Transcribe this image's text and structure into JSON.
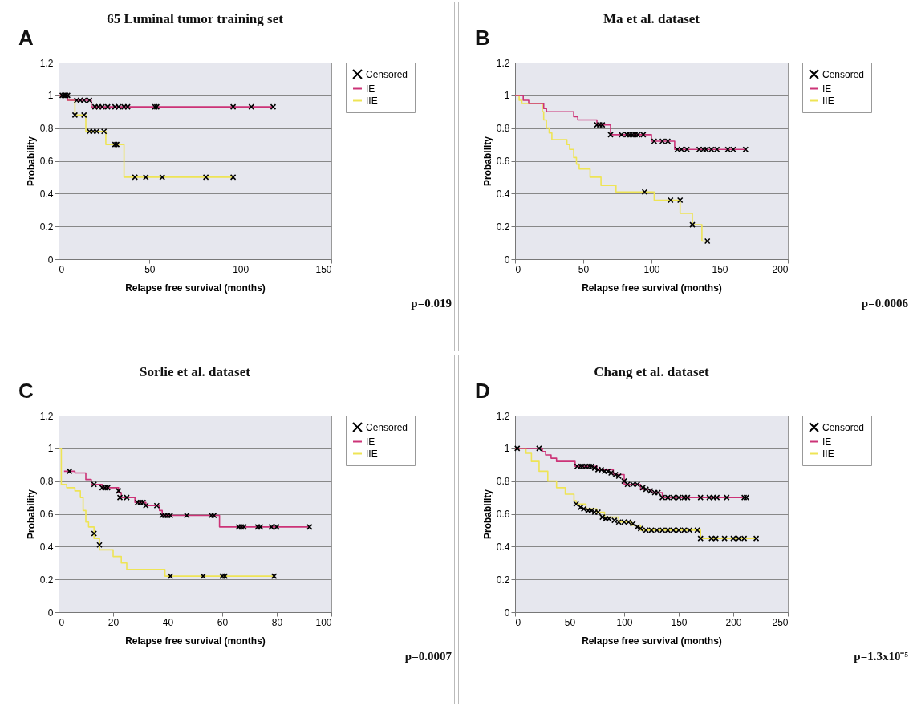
{
  "chart_data": [
    {
      "type": "step",
      "title": "65 Luminal tumor training set",
      "xlabel": "Relapse free survival (months)",
      "ylabel": "Probability",
      "annotations": [
        "A",
        "p=0.019"
      ],
      "xlim": [
        0,
        150
      ],
      "xticks": [
        0,
        50,
        100,
        150
      ],
      "ylim": [
        0,
        1.2
      ],
      "yticks": [
        0,
        0.2,
        0.4,
        0.6,
        0.8,
        1,
        1.2
      ],
      "grid": "y",
      "legend": "right",
      "series": [
        {
          "name": "Censored",
          "type": "scatter",
          "marker": "cross",
          "color": "#000000",
          "x": [
            2,
            3,
            4,
            5,
            10,
            12,
            14,
            17,
            20,
            22,
            24,
            27,
            31,
            33,
            36,
            38,
            53,
            54,
            96,
            106,
            118,
            9,
            14,
            17,
            19,
            21,
            25,
            31,
            32,
            42,
            48,
            57,
            81,
            96
          ],
          "values": [
            1,
            1,
            1,
            1,
            0.97,
            0.97,
            0.97,
            0.97,
            0.93,
            0.93,
            0.93,
            0.93,
            0.93,
            0.93,
            0.93,
            0.93,
            0.93,
            0.93,
            0.93,
            0.93,
            0.93,
            0.88,
            0.88,
            0.78,
            0.78,
            0.78,
            0.78,
            0.7,
            0.7,
            0.5,
            0.5,
            0.5,
            0.5,
            0.5
          ]
        },
        {
          "name": "IE",
          "color": "#cc3377",
          "x": [
            0,
            5,
            18,
            118
          ],
          "values": [
            1,
            0.97,
            0.93,
            0.93
          ]
        },
        {
          "name": "IIE",
          "color": "#eee455",
          "x": [
            0,
            5,
            9,
            15,
            26,
            36,
            96
          ],
          "values": [
            1,
            0.97,
            0.88,
            0.78,
            0.7,
            0.5,
            0.5
          ]
        }
      ]
    },
    {
      "type": "step",
      "title": "Ma et al. dataset",
      "xlabel": "Relapse free survival (months)",
      "ylabel": "Probability",
      "annotations": [
        "B",
        "p=0.0006"
      ],
      "xlim": [
        0,
        200
      ],
      "xticks": [
        0,
        50,
        100,
        150,
        200
      ],
      "ylim": [
        0,
        1.2
      ],
      "yticks": [
        0,
        0.2,
        0.4,
        0.6,
        0.8,
        1,
        1.2
      ],
      "grid": "y",
      "legend": "right",
      "series": [
        {
          "name": "Censored",
          "type": "scatter",
          "marker": "cross",
          "color": "#000000",
          "x": [
            60,
            62,
            64,
            70,
            78,
            82,
            84,
            86,
            88,
            90,
            94,
            102,
            108,
            112,
            119,
            122,
            126,
            135,
            138,
            140,
            144,
            148,
            156,
            160,
            169,
            95,
            114,
            121,
            130,
            141
          ],
          "values": [
            0.82,
            0.82,
            0.82,
            0.76,
            0.76,
            0.76,
            0.76,
            0.76,
            0.76,
            0.76,
            0.76,
            0.72,
            0.72,
            0.72,
            0.67,
            0.67,
            0.67,
            0.67,
            0.67,
            0.67,
            0.67,
            0.67,
            0.67,
            0.67,
            0.67,
            0.41,
            0.36,
            0.36,
            0.21,
            0.11
          ]
        },
        {
          "name": "IE",
          "color": "#cc3377",
          "x": [
            0,
            6,
            10,
            21,
            23,
            43,
            46,
            60,
            70,
            100,
            117,
            170
          ],
          "values": [
            1,
            0.97,
            0.95,
            0.92,
            0.9,
            0.87,
            0.85,
            0.82,
            0.76,
            0.72,
            0.67,
            0.67
          ]
        },
        {
          "name": "IIE",
          "color": "#eee455",
          "x": [
            0,
            3,
            5,
            20,
            21,
            23,
            25,
            27,
            38,
            40,
            43,
            45,
            47,
            55,
            63,
            74,
            102,
            121,
            130,
            137,
            141
          ],
          "values": [
            1,
            0.97,
            0.95,
            0.9,
            0.85,
            0.8,
            0.77,
            0.73,
            0.7,
            0.67,
            0.62,
            0.58,
            0.55,
            0.5,
            0.45,
            0.41,
            0.36,
            0.28,
            0.21,
            0.11,
            0.11
          ]
        }
      ]
    },
    {
      "type": "step",
      "title": "Sorlie et al. dataset",
      "xlabel": "Relapse free survival (months)",
      "ylabel": "Probability",
      "annotations": [
        "C",
        "p=0.0007"
      ],
      "xlim": [
        0,
        100
      ],
      "xticks": [
        0,
        20,
        40,
        60,
        80,
        100
      ],
      "ylim": [
        0,
        1.2
      ],
      "yticks": [
        0,
        0.2,
        0.4,
        0.6,
        0.8,
        1,
        1.2
      ],
      "grid": "y",
      "legend": "right",
      "series": [
        {
          "name": "Censored",
          "type": "scatter",
          "marker": "cross",
          "color": "#000000",
          "x": [
            4,
            13,
            16,
            17,
            18,
            22,
            22.5,
            25,
            29,
            30,
            31,
            32,
            36,
            38,
            39,
            40,
            41,
            47,
            56,
            57,
            66,
            67,
            68,
            73,
            74,
            78,
            80,
            92,
            13,
            15,
            41,
            53,
            60,
            61,
            79
          ],
          "values": [
            0.86,
            0.78,
            0.76,
            0.76,
            0.76,
            0.74,
            0.7,
            0.7,
            0.67,
            0.67,
            0.67,
            0.65,
            0.65,
            0.59,
            0.59,
            0.59,
            0.59,
            0.59,
            0.59,
            0.59,
            0.52,
            0.52,
            0.52,
            0.52,
            0.52,
            0.52,
            0.52,
            0.52,
            0.48,
            0.41,
            0.22,
            0.22,
            0.22,
            0.22,
            0.22
          ]
        },
        {
          "name": "IE",
          "color": "#cc3377",
          "x": [
            2,
            6,
            10,
            12,
            16,
            22,
            23,
            28,
            32,
            37,
            38,
            59,
            92
          ],
          "values": [
            0.86,
            0.85,
            0.81,
            0.78,
            0.76,
            0.73,
            0.7,
            0.67,
            0.65,
            0.62,
            0.59,
            0.52,
            0.52
          ]
        },
        {
          "name": "IIE",
          "color": "#eee455",
          "x": [
            0,
            1,
            3,
            6,
            8,
            9,
            10,
            11,
            13,
            15,
            20,
            23,
            25,
            39,
            79
          ],
          "values": [
            1,
            0.78,
            0.76,
            0.74,
            0.7,
            0.62,
            0.55,
            0.52,
            0.45,
            0.38,
            0.34,
            0.3,
            0.26,
            0.22,
            0.22
          ]
        }
      ]
    },
    {
      "type": "step",
      "title": "Chang et al. dataset",
      "xlabel": "Relapse free survival (months)",
      "ylabel": "Probability",
      "annotations": [
        "D",
        "p=1.3x10⁻⁵"
      ],
      "xlim": [
        0,
        250
      ],
      "xticks": [
        0,
        50,
        100,
        150,
        200,
        250
      ],
      "ylim": [
        0,
        1.2
      ],
      "yticks": [
        0,
        0.2,
        0.4,
        0.6,
        0.8,
        1,
        1.2
      ],
      "grid": "y",
      "legend": "right",
      "series": [
        {
          "name": "Censored",
          "type": "scatter",
          "marker": "cross",
          "color": "#000000",
          "x": [
            2,
            22,
            57,
            60,
            62,
            65,
            68,
            70,
            73,
            76,
            79,
            82,
            85,
            88,
            92,
            95,
            100,
            103,
            108,
            112,
            117,
            120,
            124,
            128,
            131,
            135,
            140,
            145,
            150,
            155,
            158,
            170,
            178,
            182,
            185,
            194,
            210,
            212,
            56,
            60,
            63,
            67,
            70,
            73,
            76,
            80,
            83,
            86,
            91,
            95,
            100,
            104,
            108,
            112,
            115,
            120,
            125,
            130,
            135,
            140,
            145,
            150,
            155,
            160,
            167,
            170,
            180,
            184,
            192,
            200,
            205,
            210,
            221
          ],
          "values": [
            1,
            1,
            0.89,
            0.89,
            0.89,
            0.89,
            0.89,
            0.89,
            0.88,
            0.87,
            0.87,
            0.86,
            0.86,
            0.85,
            0.84,
            0.83,
            0.8,
            0.78,
            0.78,
            0.78,
            0.76,
            0.75,
            0.74,
            0.73,
            0.73,
            0.7,
            0.7,
            0.7,
            0.7,
            0.7,
            0.7,
            0.7,
            0.7,
            0.7,
            0.7,
            0.7,
            0.7,
            0.7,
            0.66,
            0.64,
            0.63,
            0.62,
            0.62,
            0.61,
            0.61,
            0.58,
            0.57,
            0.57,
            0.56,
            0.55,
            0.55,
            0.55,
            0.54,
            0.52,
            0.51,
            0.5,
            0.5,
            0.5,
            0.5,
            0.5,
            0.5,
            0.5,
            0.5,
            0.5,
            0.5,
            0.45,
            0.45,
            0.45,
            0.45,
            0.45,
            0.45,
            0.45,
            0.45
          ]
        },
        {
          "name": "IE",
          "color": "#cc3377",
          "x": [
            0,
            25,
            28,
            33,
            38,
            55,
            75,
            90,
            100,
            115,
            125,
            135,
            212
          ],
          "values": [
            1,
            0.98,
            0.96,
            0.94,
            0.92,
            0.89,
            0.87,
            0.84,
            0.78,
            0.75,
            0.73,
            0.7,
            0.7
          ]
        },
        {
          "name": "IIE",
          "color": "#eee455",
          "x": [
            0,
            5,
            10,
            15,
            22,
            30,
            38,
            46,
            54,
            56,
            65,
            75,
            82,
            95,
            107,
            115,
            165,
            170,
            222
          ],
          "values": [
            1,
            1,
            0.97,
            0.92,
            0.86,
            0.8,
            0.76,
            0.72,
            0.68,
            0.66,
            0.63,
            0.61,
            0.58,
            0.55,
            0.53,
            0.5,
            0.5,
            0.45,
            0.45
          ]
        }
      ]
    }
  ]
}
